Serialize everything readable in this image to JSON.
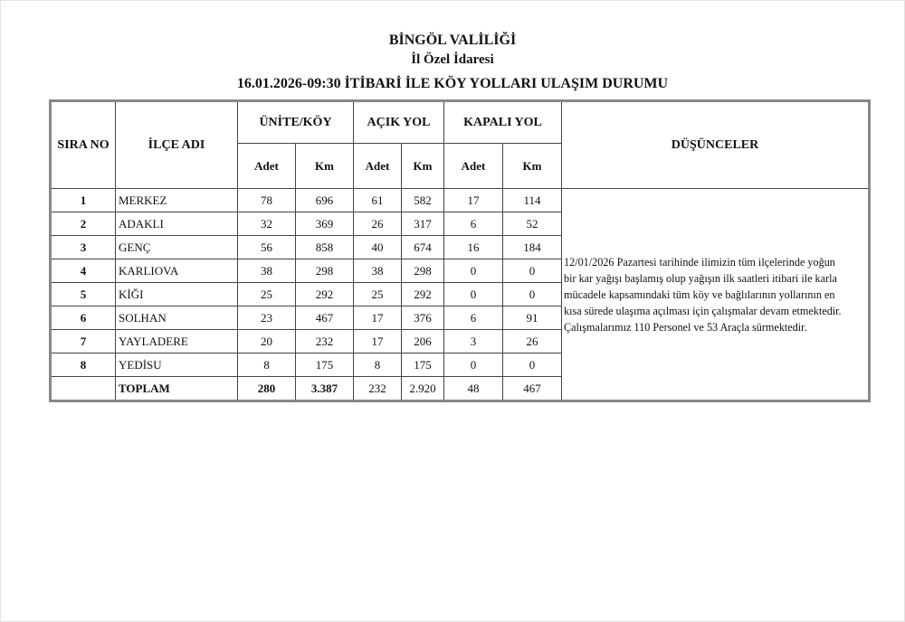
{
  "header": {
    "title": "BİNGÖL VALİLİĞİ",
    "subtitle": "İl Özel İdaresi",
    "report_title": "16.01.2026-09:30 İTİBARİ İLE KÖY YOLLARI ULAŞIM DURUMU"
  },
  "table": {
    "columns": {
      "sira_no": "SIRA NO",
      "ilce_adi": "İLÇE ADI",
      "unite_koy": "ÜNİTE/KÖY",
      "acik_yol": "AÇIK YOL",
      "kapali_yol": "KAPALI YOL",
      "dusunceler": "DÜŞÜNCELER",
      "adet": "Adet",
      "km": "Km"
    },
    "rows": [
      {
        "no": "1",
        "name": "MERKEZ",
        "u_adet": "78",
        "u_km": "696",
        "a_adet": "61",
        "a_km": "582",
        "k_adet": "17",
        "k_km": "114"
      },
      {
        "no": "2",
        "name": "ADAKLI",
        "u_adet": "32",
        "u_km": "369",
        "a_adet": "26",
        "a_km": "317",
        "k_adet": "6",
        "k_km": "52"
      },
      {
        "no": "3",
        "name": "GENÇ",
        "u_adet": "56",
        "u_km": "858",
        "a_adet": "40",
        "a_km": "674",
        "k_adet": "16",
        "k_km": "184"
      },
      {
        "no": "4",
        "name": "KARLIOVA",
        "u_adet": "38",
        "u_km": "298",
        "a_adet": "38",
        "a_km": "298",
        "k_adet": "0",
        "k_km": "0"
      },
      {
        "no": "5",
        "name": "KİĞI",
        "u_adet": "25",
        "u_km": "292",
        "a_adet": "25",
        "a_km": "292",
        "k_adet": "0",
        "k_km": "0"
      },
      {
        "no": "6",
        "name": "SOLHAN",
        "u_adet": "23",
        "u_km": "467",
        "a_adet": "17",
        "a_km": "376",
        "k_adet": "6",
        "k_km": "91"
      },
      {
        "no": "7",
        "name": "YAYLADERE",
        "u_adet": "20",
        "u_km": "232",
        "a_adet": "17",
        "a_km": "206",
        "k_adet": "3",
        "k_km": "26"
      },
      {
        "no": "8",
        "name": "YEDİSU",
        "u_adet": "8",
        "u_km": "175",
        "a_adet": "8",
        "a_km": "175",
        "k_adet": "0",
        "k_km": "0"
      }
    ],
    "total": {
      "name": "TOPLAM",
      "u_adet": "280",
      "u_km": "3.387",
      "a_adet": "232",
      "a_km": "2.920",
      "k_adet": "48",
      "k_km": "467"
    },
    "remarks_lines": [
      "12/01/2026 Pazartesi tarihinde ilimizin tüm ilçelerinde yoğun",
      "bir kar yağışı başlamış olup yağışın ilk saatleri itibari ile karla",
      "mücadele kapsamındaki tüm köy ve bağlılarının yollarının en",
      "kısa sürede ulaşıma açılması için çalışmalar devam etmektedir.",
      "Çalışmalarımız 110 Personel ve 53 Araçla sürmektedir."
    ]
  }
}
